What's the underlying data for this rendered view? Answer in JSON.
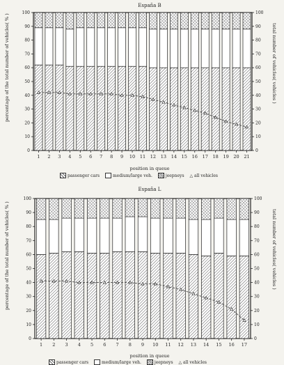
{
  "chart_data": [
    {
      "type": "bar",
      "title": "España B",
      "xlabel": "position in queue",
      "ylabel": "percentage of the total number of vehicles( % )",
      "y2label": "total number of vehicles( vehicles )",
      "ylim": [
        0,
        100
      ],
      "y2lim": [
        0,
        100
      ],
      "yticks": [
        0,
        10,
        20,
        30,
        40,
        50,
        60,
        70,
        80,
        90,
        100
      ],
      "categories": [
        "1",
        "2",
        "3",
        "4",
        "5",
        "6",
        "7",
        "8",
        "9",
        "10",
        "11",
        "12",
        "13",
        "14",
        "15",
        "16",
        "17",
        "18",
        "19",
        "20",
        "21"
      ],
      "series": [
        {
          "name": "passenger cars",
          "values": [
            62,
            62,
            62,
            61,
            61,
            61,
            61,
            61,
            61,
            61,
            61,
            60,
            60,
            60,
            60,
            60,
            60,
            60,
            60,
            60,
            60
          ]
        },
        {
          "name": "medium/large veh.",
          "values": [
            27,
            27,
            27,
            27,
            28,
            28,
            28,
            28,
            28,
            28,
            28,
            28,
            28,
            28,
            28,
            28,
            28,
            28,
            28,
            28,
            28
          ]
        },
        {
          "name": "jeepneys",
          "values": [
            11,
            11,
            11,
            12,
            11,
            11,
            11,
            11,
            11,
            11,
            11,
            12,
            12,
            12,
            12,
            12,
            12,
            12,
            12,
            12,
            12
          ]
        },
        {
          "name": "all vehicles",
          "axis": "right",
          "values": [
            42,
            42,
            42,
            41,
            41,
            41,
            41,
            41,
            40,
            40,
            39,
            37,
            35,
            33,
            31,
            29,
            27,
            24,
            21,
            19,
            17
          ]
        }
      ],
      "legend": [
        "passenger cars",
        "medium/large veh.",
        "jeepneys",
        "all vehicles"
      ],
      "legend_placement": "bottom"
    },
    {
      "type": "bar",
      "title": "España L",
      "xlabel": "position in queue",
      "ylabel": "percentage of the total number of vehicles( % )",
      "y2label": "total number of vehicles( vehicles )",
      "ylim": [
        0,
        100
      ],
      "y2lim": [
        0,
        100
      ],
      "yticks": [
        0,
        10,
        20,
        30,
        40,
        50,
        60,
        70,
        80,
        90,
        100
      ],
      "categories": [
        "1",
        "2",
        "3",
        "4",
        "5",
        "6",
        "7",
        "8",
        "9",
        "10",
        "11",
        "12",
        "13",
        "14",
        "15",
        "16",
        "17"
      ],
      "series": [
        {
          "name": "passenger cars",
          "values": [
            60,
            61,
            62,
            62,
            61,
            61,
            62,
            62,
            62,
            61,
            61,
            61,
            60,
            59,
            61,
            59,
            59
          ]
        },
        {
          "name": "medium/large veh.",
          "values": [
            25,
            24,
            24,
            24,
            25,
            25,
            24,
            25,
            25,
            25,
            25,
            25,
            25,
            26,
            25,
            26,
            26
          ]
        },
        {
          "name": "jeepneys",
          "values": [
            15,
            15,
            14,
            14,
            14,
            14,
            14,
            13,
            13,
            14,
            14,
            14,
            15,
            15,
            14,
            15,
            15
          ]
        },
        {
          "name": "all vehicles",
          "axis": "right",
          "values": [
            41,
            41,
            41,
            40,
            40,
            40,
            40,
            40,
            39,
            39,
            37,
            35,
            32,
            29,
            26,
            21,
            13
          ]
        }
      ],
      "legend": [
        "passenger cars",
        "medium/large veh.",
        "jeepneys",
        "all vehicles"
      ],
      "legend_placement": "bottom"
    }
  ]
}
